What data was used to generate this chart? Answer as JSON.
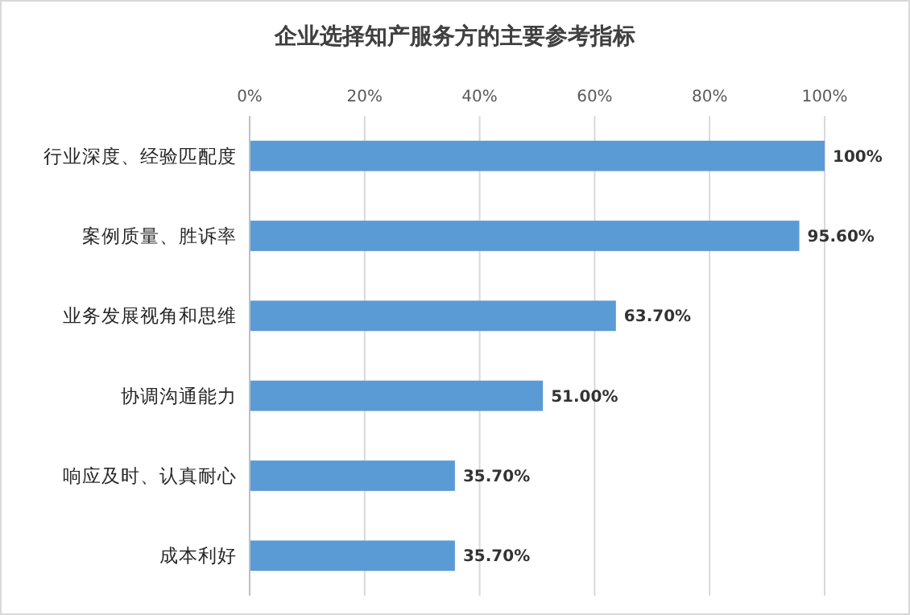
{
  "chart_data": {
    "type": "bar",
    "orientation": "horizontal",
    "title": "企业选择知产服务方的主要参考指标",
    "categories": [
      "行业深度、经验匹配度",
      "案例质量、胜诉率",
      "业务发展视角和思维",
      "协调沟通能力",
      "响应及时、认真耐心",
      "成本利好"
    ],
    "values": [
      100,
      95.6,
      63.7,
      51,
      35.7,
      35.7
    ],
    "value_labels": [
      "100%",
      "95.60%",
      "63.70%",
      "51.00%",
      "35.70%",
      "35.70%"
    ],
    "color": "#5b9bd5",
    "xlim": [
      0,
      100
    ],
    "xticks": [
      {
        "value": 0,
        "label": "0%"
      },
      {
        "value": 20,
        "label": "20%"
      },
      {
        "value": 40,
        "label": "40%"
      },
      {
        "value": 60,
        "label": "60%"
      },
      {
        "value": 80,
        "label": "80%"
      },
      {
        "value": 100,
        "label": "100%"
      }
    ],
    "grid": "x"
  }
}
